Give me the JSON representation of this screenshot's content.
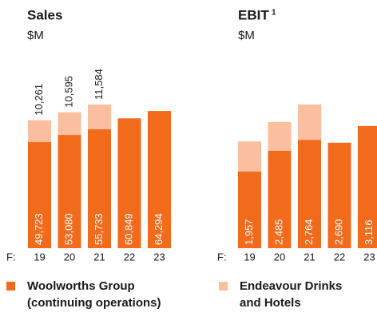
{
  "chart_data": [
    {
      "type": "bar",
      "stacked": true,
      "title": "Sales",
      "subtitle": "$M",
      "x_prefix": "F:",
      "categories": [
        "19",
        "20",
        "21",
        "22",
        "23"
      ],
      "series": [
        {
          "name": "Woolworths Group (continuing operations)",
          "color": "#f26b1d",
          "values": [
            49723,
            53080,
            55733,
            60849,
            64294
          ],
          "value_labels": [
            "49,723",
            "53,080",
            "55,733",
            "60,849",
            "64,294"
          ]
        },
        {
          "name": "Endeavour Drinks and Hotels",
          "color": "#fbbf9f",
          "values": [
            10261,
            10595,
            11584,
            null,
            null
          ],
          "value_labels": [
            "10,261",
            "10,595",
            "11,584",
            null,
            null
          ]
        }
      ]
    },
    {
      "type": "bar",
      "stacked": true,
      "title": "EBIT",
      "title_note": "1",
      "subtitle": "$M",
      "x_prefix": "F:",
      "categories": [
        "19",
        "20",
        "21",
        "22",
        "23"
      ],
      "series": [
        {
          "name": "Woolworths Group (continuing operations)",
          "color": "#f26b1d",
          "values": [
            1957,
            2485,
            2764,
            2690,
            3116
          ],
          "value_labels": [
            "1,957",
            "2,485",
            "2,764",
            "2,690",
            "3,116"
          ]
        },
        {
          "name": "Endeavour Drinks and Hotels",
          "color": "#fbbf9f",
          "values": [
            765,
            734,
            899,
            null,
            null
          ],
          "value_labels": [
            null,
            null,
            null,
            null,
            null
          ]
        }
      ]
    }
  ]
}
